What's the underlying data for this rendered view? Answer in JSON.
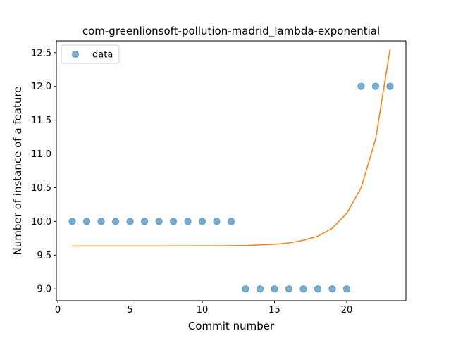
{
  "chart_data": {
    "type": "scatter",
    "title": "com-greenlionsoft-pollution-madrid_lambda-exponential",
    "xlabel": "Commit number",
    "ylabel": "Number of instance of a feature",
    "xlim": [
      -0.1,
      24.1
    ],
    "ylim": [
      8.825,
      12.675
    ],
    "xticks": [
      0,
      5,
      10,
      15,
      20
    ],
    "yticks": [
      9.0,
      9.5,
      10.0,
      10.5,
      11.0,
      11.5,
      12.0,
      12.5
    ],
    "xtick_labels": [
      "0",
      "5",
      "10",
      "15",
      "20"
    ],
    "ytick_labels": [
      "9.0",
      "9.5",
      "10.0",
      "10.5",
      "11.0",
      "11.5",
      "12.0",
      "12.5"
    ],
    "grid": false,
    "legend": {
      "placement": "top-left",
      "entries": [
        "data"
      ]
    },
    "colors": {
      "data": "#1f77b4",
      "fit": "#ff7f0e"
    },
    "series": [
      {
        "name": "data",
        "kind": "scatter",
        "x": [
          1,
          2,
          3,
          4,
          5,
          6,
          7,
          8,
          9,
          10,
          11,
          12,
          13,
          14,
          15,
          16,
          17,
          18,
          19,
          20,
          21,
          22,
          23
        ],
        "y": [
          10,
          10,
          10,
          10,
          10,
          10,
          10,
          10,
          10,
          10,
          10,
          10,
          9,
          9,
          9,
          9,
          9,
          9,
          9,
          9,
          12,
          12,
          12
        ]
      },
      {
        "kind": "line",
        "x": [
          1,
          2,
          3,
          4,
          5,
          6,
          7,
          8,
          9,
          10,
          11,
          12,
          13,
          14,
          15,
          16,
          17,
          18,
          19,
          20,
          21,
          22,
          23
        ],
        "y": [
          9.635,
          9.635,
          9.635,
          9.635,
          9.635,
          9.635,
          9.635,
          9.636,
          9.636,
          9.637,
          9.638,
          9.64,
          9.643,
          9.65,
          9.66,
          9.68,
          9.72,
          9.78,
          9.9,
          10.12,
          10.5,
          11.22,
          12.55
        ]
      }
    ]
  }
}
